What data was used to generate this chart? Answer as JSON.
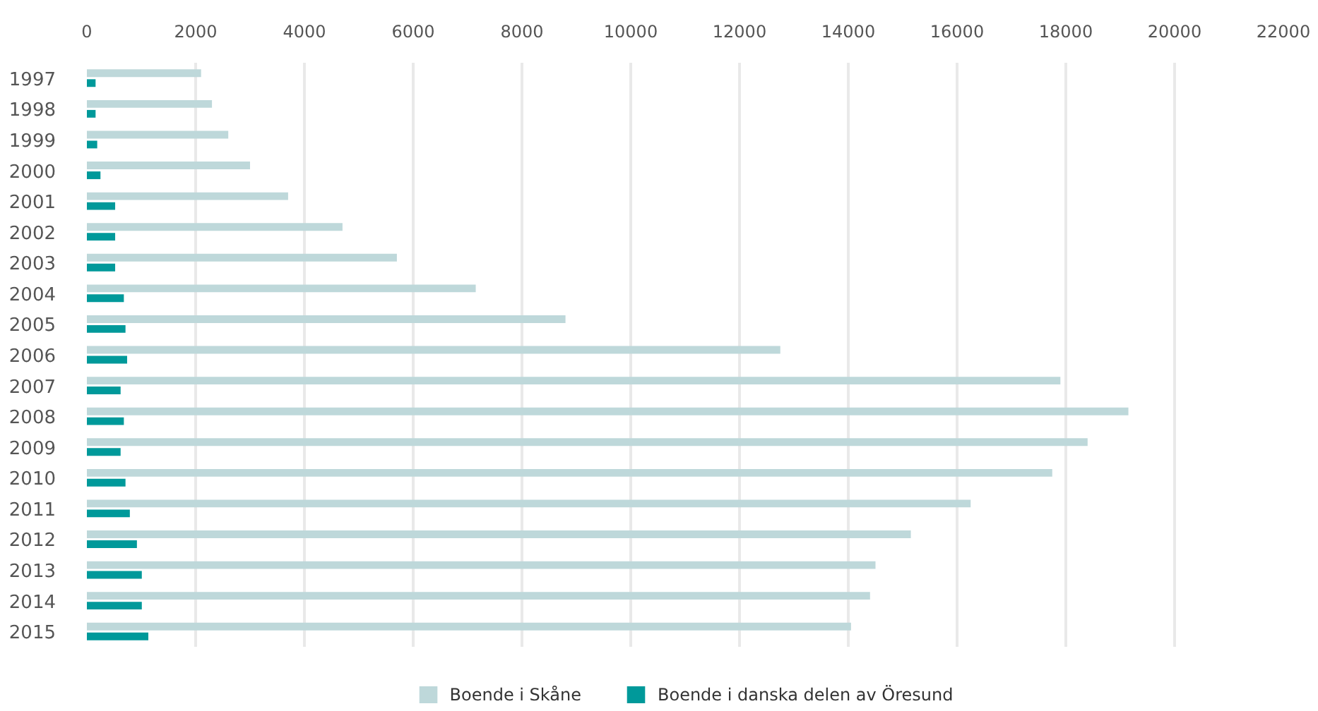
{
  "chart_data": {
    "type": "bar",
    "orientation": "horizontal",
    "categories": [
      "1997",
      "1998",
      "1999",
      "2000",
      "2001",
      "2002",
      "2003",
      "2004",
      "2005",
      "2006",
      "2007",
      "2008",
      "2009",
      "2010",
      "2011",
      "2012",
      "2013",
      "2014",
      "2015"
    ],
    "series": [
      {
        "name": "Boende i Skåne",
        "color": "#bed8da",
        "values": [
          2100,
          2300,
          2600,
          3000,
          3700,
          4700,
          5700,
          7150,
          8800,
          12750,
          17900,
          19150,
          18400,
          17750,
          16250,
          15150,
          14500,
          14400,
          14050
        ]
      },
      {
        "name": "Boende i danska delen av Öresund",
        "color": "#00999a",
        "values": [
          160,
          160,
          190,
          250,
          520,
          520,
          520,
          680,
          710,
          740,
          620,
          680,
          620,
          710,
          790,
          920,
          1010,
          1010,
          1130
        ]
      }
    ],
    "xlim": [
      0,
      22000
    ],
    "xticks": [
      0,
      2000,
      4000,
      6000,
      8000,
      10000,
      12000,
      14000,
      16000,
      18000,
      20000,
      22000
    ],
    "grid": "x",
    "legend": "bottom"
  }
}
